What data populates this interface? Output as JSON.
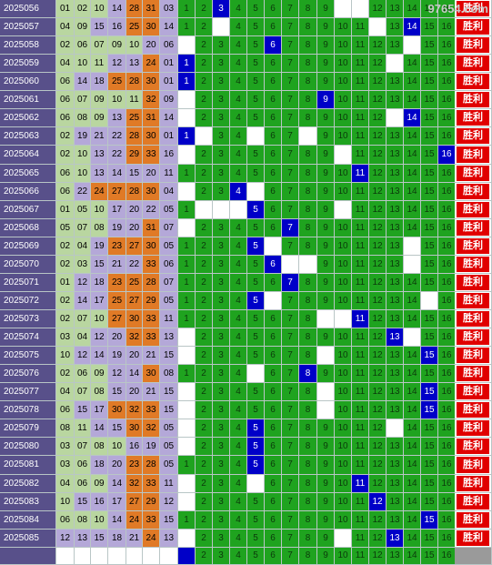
{
  "watermark": "97654.com",
  "result_label": "胜利",
  "colors": {
    "issue_bg": "#58508a",
    "band_green": "#b9d6a0",
    "band_purple": "#b4a8d8",
    "band_orange": "#e07a26",
    "grid_green": "#1fa31f",
    "blue_hit": "#0000c8",
    "result_red": "#e00000"
  },
  "blue_numbers": [
    "1",
    "2",
    "3",
    "4",
    "5",
    "6",
    "7",
    "8",
    "9",
    "10",
    "11",
    "12",
    "13",
    "14",
    "15",
    "16"
  ],
  "rows": [
    {
      "issue": "2025056",
      "reds": [
        "01",
        "02",
        "10",
        "14",
        "28",
        "31"
      ],
      "blue": "03",
      "blank": [
        9,
        10
      ]
    },
    {
      "issue": "2025057",
      "reds": [
        "04",
        "09",
        "15",
        "16",
        "25",
        "30"
      ],
      "blue": "14",
      "blank": [
        2,
        11
      ]
    },
    {
      "issue": "2025058",
      "reds": [
        "02",
        "06",
        "07",
        "09",
        "10",
        "20"
      ],
      "blue": "06",
      "blank": [
        0,
        13
      ]
    },
    {
      "issue": "2025059",
      "reds": [
        "04",
        "10",
        "11",
        "12",
        "13",
        "24"
      ],
      "blue": "01",
      "blank": [
        12
      ]
    },
    {
      "issue": "2025060",
      "reds": [
        "06",
        "14",
        "18",
        "25",
        "28",
        "30"
      ],
      "blue": "01",
      "blank": []
    },
    {
      "issue": "2025061",
      "reds": [
        "06",
        "07",
        "09",
        "10",
        "11",
        "32"
      ],
      "blue": "09",
      "blank": [
        0
      ]
    },
    {
      "issue": "2025062",
      "reds": [
        "06",
        "08",
        "09",
        "13",
        "25",
        "31"
      ],
      "blue": "14",
      "blank": [
        0,
        12
      ]
    },
    {
      "issue": "2025063",
      "reds": [
        "02",
        "19",
        "21",
        "22",
        "28",
        "30"
      ],
      "blue": "01",
      "blank": [
        1,
        4,
        7
      ]
    },
    {
      "issue": "2025064",
      "reds": [
        "02",
        "10",
        "13",
        "22",
        "29",
        "33"
      ],
      "blue": "16",
      "blank": [
        0,
        9
      ]
    },
    {
      "issue": "2025065",
      "reds": [
        "06",
        "10",
        "13",
        "14",
        "15",
        "20"
      ],
      "blue": "11",
      "blank": []
    },
    {
      "issue": "2025066",
      "reds": [
        "06",
        "22",
        "24",
        "27",
        "28",
        "30"
      ],
      "blue": "04",
      "blank": [
        0,
        4
      ]
    },
    {
      "issue": "2025067",
      "reds": [
        "01",
        "05",
        "10",
        "17",
        "20",
        "22"
      ],
      "blue": "05",
      "blank": [
        1,
        2,
        3,
        9
      ]
    },
    {
      "issue": "2025068",
      "reds": [
        "05",
        "07",
        "08",
        "19",
        "20",
        "31"
      ],
      "blue": "07",
      "blank": [
        0
      ]
    },
    {
      "issue": "2025069",
      "reds": [
        "02",
        "04",
        "19",
        "23",
        "27",
        "30"
      ],
      "blue": "05",
      "blank": [
        5,
        13
      ]
    },
    {
      "issue": "2025070",
      "reds": [
        "02",
        "03",
        "15",
        "21",
        "22",
        "33"
      ],
      "blue": "06",
      "blank": [
        6,
        7,
        13
      ]
    },
    {
      "issue": "2025071",
      "reds": [
        "01",
        "12",
        "18",
        "23",
        "25",
        "28"
      ],
      "blue": "07",
      "blank": []
    },
    {
      "issue": "2025072",
      "reds": [
        "02",
        "14",
        "17",
        "25",
        "27",
        "29"
      ],
      "blue": "05",
      "blank": [
        5,
        14
      ]
    },
    {
      "issue": "2025073",
      "reds": [
        "02",
        "07",
        "10",
        "27",
        "30",
        "33"
      ],
      "blue": "11",
      "blank": [
        8,
        9
      ]
    },
    {
      "issue": "2025074",
      "reds": [
        "03",
        "04",
        "12",
        "20",
        "32",
        "33"
      ],
      "blue": "13",
      "blank": [
        0,
        13
      ]
    },
    {
      "issue": "2025075",
      "reds": [
        "10",
        "12",
        "14",
        "19",
        "20",
        "21"
      ],
      "blue": "15",
      "blank": [
        0,
        8
      ]
    },
    {
      "issue": "2025076",
      "reds": [
        "02",
        "06",
        "09",
        "12",
        "14",
        "30"
      ],
      "blue": "08",
      "blank": [
        4
      ]
    },
    {
      "issue": "2025077",
      "reds": [
        "04",
        "07",
        "08",
        "15",
        "20",
        "21"
      ],
      "blue": "15",
      "blank": [
        0,
        8
      ]
    },
    {
      "issue": "2025078",
      "reds": [
        "06",
        "15",
        "17",
        "30",
        "32",
        "33"
      ],
      "blue": "15",
      "blank": [
        0,
        8
      ]
    },
    {
      "issue": "2025079",
      "reds": [
        "08",
        "11",
        "14",
        "15",
        "30",
        "32"
      ],
      "blue": "05",
      "blank": [
        0,
        12
      ]
    },
    {
      "issue": "2025080",
      "reds": [
        "03",
        "07",
        "08",
        "10",
        "16",
        "19"
      ],
      "blue": "05",
      "blank": [
        0
      ]
    },
    {
      "issue": "2025081",
      "reds": [
        "03",
        "06",
        "18",
        "20",
        "23",
        "28"
      ],
      "blue": "05",
      "blank": []
    },
    {
      "issue": "2025082",
      "reds": [
        "04",
        "06",
        "09",
        "14",
        "32",
        "33"
      ],
      "blue": "11",
      "blank": [
        0,
        4
      ]
    },
    {
      "issue": "2025083",
      "reds": [
        "10",
        "15",
        "16",
        "17",
        "27",
        "29"
      ],
      "blue": "12",
      "blank": [
        0
      ]
    },
    {
      "issue": "2025084",
      "reds": [
        "06",
        "08",
        "10",
        "14",
        "24",
        "33"
      ],
      "blue": "15",
      "blank": []
    },
    {
      "issue": "2025085",
      "reds": [
        "12",
        "13",
        "15",
        "18",
        "21",
        "24"
      ],
      "blue": "13",
      "blank": [
        0,
        9
      ]
    }
  ],
  "pending_row": {
    "issue": "",
    "reds": [
      "",
      "",
      "",
      "",
      "",
      ""
    ],
    "blue": ""
  }
}
